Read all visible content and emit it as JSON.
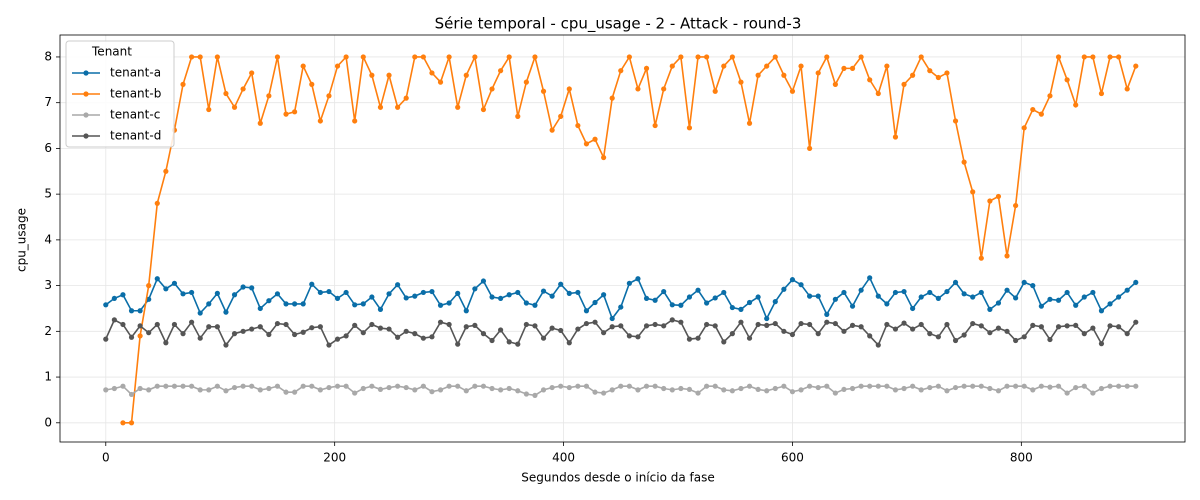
{
  "chart_data": {
    "type": "line",
    "title": "Série temporal - cpu_usage - 2 - Attack - round-3",
    "x_label": "Segundos desde o início da fase",
    "y_label": "cpu_usage",
    "legend_title": "Tenant",
    "legend_position": "upper left",
    "grid": true,
    "xlim": [
      -40,
      943
    ],
    "ylim": [
      -0.42,
      8.48
    ],
    "xticks": [
      0,
      200,
      400,
      600,
      800
    ],
    "yticks": [
      0,
      1,
      2,
      3,
      4,
      5,
      6,
      7,
      8
    ],
    "x": [
      0,
      7.5,
      15,
      22.5,
      30,
      37.5,
      45,
      52.5,
      60,
      67.5,
      75,
      82.5,
      90,
      97.5,
      105,
      112.5,
      120,
      127.5,
      135,
      142.5,
      150,
      157.5,
      165,
      172.5,
      180,
      187.5,
      195,
      202.5,
      210,
      217.5,
      225,
      232.5,
      240,
      247.5,
      255,
      262.5,
      270,
      277.5,
      285,
      292.5,
      300,
      307.5,
      315,
      322.5,
      330,
      337.5,
      345,
      352.5,
      360,
      367.5,
      375,
      382.5,
      390,
      397.5,
      405,
      412.5,
      420,
      427.5,
      435,
      442.5,
      450,
      457.5,
      465,
      472.5,
      480,
      487.5,
      495,
      502.5,
      510,
      517.5,
      525,
      532.5,
      540,
      547.5,
      555,
      562.5,
      570,
      577.5,
      585,
      592.5,
      600,
      607.5,
      615,
      622.5,
      630,
      637.5,
      645,
      652.5,
      660,
      667.5,
      675,
      682.5,
      690,
      697.5,
      705,
      712.5,
      720,
      727.5,
      735,
      742.5,
      750,
      757.5,
      765,
      772.5,
      780,
      787.5,
      795,
      802.5,
      810,
      817.5,
      825,
      832.5,
      840,
      847.5,
      855,
      862.5,
      870,
      877.5,
      885,
      892.5,
      900
    ],
    "series": [
      {
        "name": "tenant-a",
        "color": "#0a6ea8",
        "values": [
          2.58,
          2.72,
          2.8,
          2.45,
          2.45,
          2.7,
          3.15,
          2.93,
          3.05,
          2.82,
          2.85,
          2.4,
          2.6,
          2.83,
          2.42,
          2.8,
          2.97,
          2.95,
          2.5,
          2.67,
          2.82,
          2.6,
          2.6,
          2.6,
          3.03,
          2.85,
          2.87,
          2.72,
          2.85,
          2.58,
          2.6,
          2.75,
          2.48,
          2.82,
          3.02,
          2.73,
          2.77,
          2.85,
          2.87,
          2.57,
          2.62,
          2.83,
          2.45,
          2.93,
          3.1,
          2.75,
          2.72,
          2.8,
          2.85,
          2.62,
          2.57,
          2.88,
          2.77,
          3.03,
          2.83,
          2.85,
          2.45,
          2.63,
          2.8,
          2.28,
          2.53,
          3.05,
          3.15,
          2.72,
          2.68,
          2.87,
          2.58,
          2.57,
          2.75,
          2.9,
          2.62,
          2.73,
          2.85,
          2.52,
          2.48,
          2.63,
          2.75,
          2.28,
          2.65,
          2.92,
          3.13,
          3.02,
          2.77,
          2.77,
          2.37,
          2.7,
          2.85,
          2.55,
          2.9,
          3.17,
          2.77,
          2.6,
          2.85,
          2.87,
          2.5,
          2.75,
          2.85,
          2.72,
          2.87,
          3.07,
          2.82,
          2.75,
          2.85,
          2.48,
          2.62,
          2.9,
          2.73,
          3.07,
          3.0,
          2.55,
          2.7,
          2.68,
          2.85,
          2.57,
          2.75,
          2.85,
          2.45,
          2.6,
          2.75,
          2.9,
          3.07
        ]
      },
      {
        "name": "tenant-b",
        "color": "#ff7f0e",
        "values": [
          null,
          null,
          0,
          0,
          1.9,
          3.0,
          4.8,
          5.5,
          6.4,
          7.4,
          8.0,
          8.0,
          6.85,
          8.0,
          7.2,
          6.9,
          7.3,
          7.65,
          6.55,
          7.15,
          8.0,
          6.75,
          6.8,
          7.8,
          7.4,
          6.6,
          7.15,
          7.8,
          8.0,
          6.6,
          8.0,
          7.6,
          6.9,
          7.6,
          6.9,
          7.1,
          8.0,
          8.0,
          7.65,
          7.45,
          8.0,
          6.9,
          7.6,
          8.0,
          6.85,
          7.3,
          7.7,
          8.0,
          6.7,
          7.45,
          8.0,
          7.25,
          6.4,
          6.7,
          7.3,
          6.5,
          6.1,
          6.2,
          5.8,
          7.1,
          7.7,
          8.0,
          7.3,
          7.75,
          6.5,
          7.3,
          7.8,
          8.0,
          6.45,
          8.0,
          8.0,
          7.25,
          7.8,
          8.0,
          7.45,
          6.55,
          7.6,
          7.8,
          8.0,
          7.6,
          7.25,
          7.8,
          6.0,
          7.65,
          8.0,
          7.4,
          7.75,
          7.75,
          8.0,
          7.5,
          7.2,
          7.8,
          6.25,
          7.4,
          7.6,
          8.0,
          7.7,
          7.55,
          7.65,
          6.6,
          5.7,
          5.05,
          3.6,
          4.85,
          4.95,
          3.65,
          4.75,
          6.45,
          6.85,
          6.75,
          7.15,
          8.0,
          7.5,
          6.95,
          8.0,
          8.0,
          7.2,
          8.0,
          8.0,
          7.3,
          7.8
        ]
      },
      {
        "name": "tenant-c",
        "color": "#a9a9a9",
        "values": [
          0.72,
          0.75,
          0.8,
          0.62,
          0.75,
          0.72,
          0.8,
          0.8,
          0.8,
          0.8,
          0.8,
          0.72,
          0.72,
          0.8,
          0.7,
          0.77,
          0.8,
          0.8,
          0.72,
          0.75,
          0.8,
          0.67,
          0.67,
          0.8,
          0.8,
          0.72,
          0.77,
          0.8,
          0.8,
          0.65,
          0.75,
          0.8,
          0.73,
          0.77,
          0.8,
          0.77,
          0.72,
          0.8,
          0.68,
          0.72,
          0.8,
          0.8,
          0.7,
          0.8,
          0.8,
          0.75,
          0.72,
          0.75,
          0.7,
          0.63,
          0.6,
          0.72,
          0.77,
          0.8,
          0.77,
          0.8,
          0.8,
          0.67,
          0.65,
          0.72,
          0.8,
          0.8,
          0.72,
          0.8,
          0.8,
          0.75,
          0.72,
          0.75,
          0.73,
          0.65,
          0.8,
          0.8,
          0.72,
          0.7,
          0.75,
          0.8,
          0.73,
          0.7,
          0.75,
          0.8,
          0.68,
          0.72,
          0.8,
          0.77,
          0.8,
          0.65,
          0.73,
          0.75,
          0.8,
          0.8,
          0.8,
          0.8,
          0.72,
          0.75,
          0.8,
          0.72,
          0.77,
          0.8,
          0.7,
          0.77,
          0.8,
          0.8,
          0.8,
          0.75,
          0.7,
          0.8,
          0.8,
          0.8,
          0.72,
          0.8,
          0.78,
          0.8,
          0.65,
          0.77,
          0.8,
          0.65,
          0.75,
          0.8,
          0.8,
          0.8,
          0.8
        ]
      },
      {
        "name": "tenant-d",
        "color": "#555555",
        "values": [
          1.83,
          2.25,
          2.15,
          1.87,
          2.12,
          1.97,
          2.15,
          1.75,
          2.15,
          1.95,
          2.2,
          1.85,
          2.1,
          2.1,
          1.7,
          1.95,
          2.0,
          2.05,
          2.1,
          1.93,
          2.17,
          2.15,
          1.93,
          1.98,
          2.08,
          2.1,
          1.7,
          1.83,
          1.9,
          2.13,
          1.97,
          2.15,
          2.07,
          2.05,
          1.87,
          2.0,
          1.95,
          1.85,
          1.88,
          2.2,
          2.15,
          1.72,
          2.1,
          2.13,
          1.95,
          1.8,
          2.03,
          1.77,
          1.72,
          2.15,
          2.12,
          1.85,
          2.07,
          2.02,
          1.75,
          2.05,
          2.17,
          2.2,
          1.97,
          2.1,
          2.12,
          1.9,
          1.88,
          2.12,
          2.15,
          2.12,
          2.25,
          2.2,
          1.83,
          1.85,
          2.15,
          2.12,
          1.77,
          1.95,
          2.2,
          1.85,
          2.15,
          2.13,
          2.17,
          2.0,
          1.93,
          2.17,
          2.15,
          1.95,
          2.2,
          2.17,
          2.0,
          2.13,
          2.1,
          1.9,
          1.7,
          2.15,
          2.05,
          2.18,
          2.05,
          2.15,
          1.95,
          1.88,
          2.15,
          1.8,
          1.92,
          2.17,
          2.12,
          1.97,
          2.07,
          2.0,
          1.8,
          1.88,
          2.13,
          2.1,
          1.82,
          2.1,
          2.12,
          2.13,
          1.95,
          2.07,
          1.73,
          2.12,
          2.1,
          1.95,
          2.2
        ]
      }
    ]
  }
}
